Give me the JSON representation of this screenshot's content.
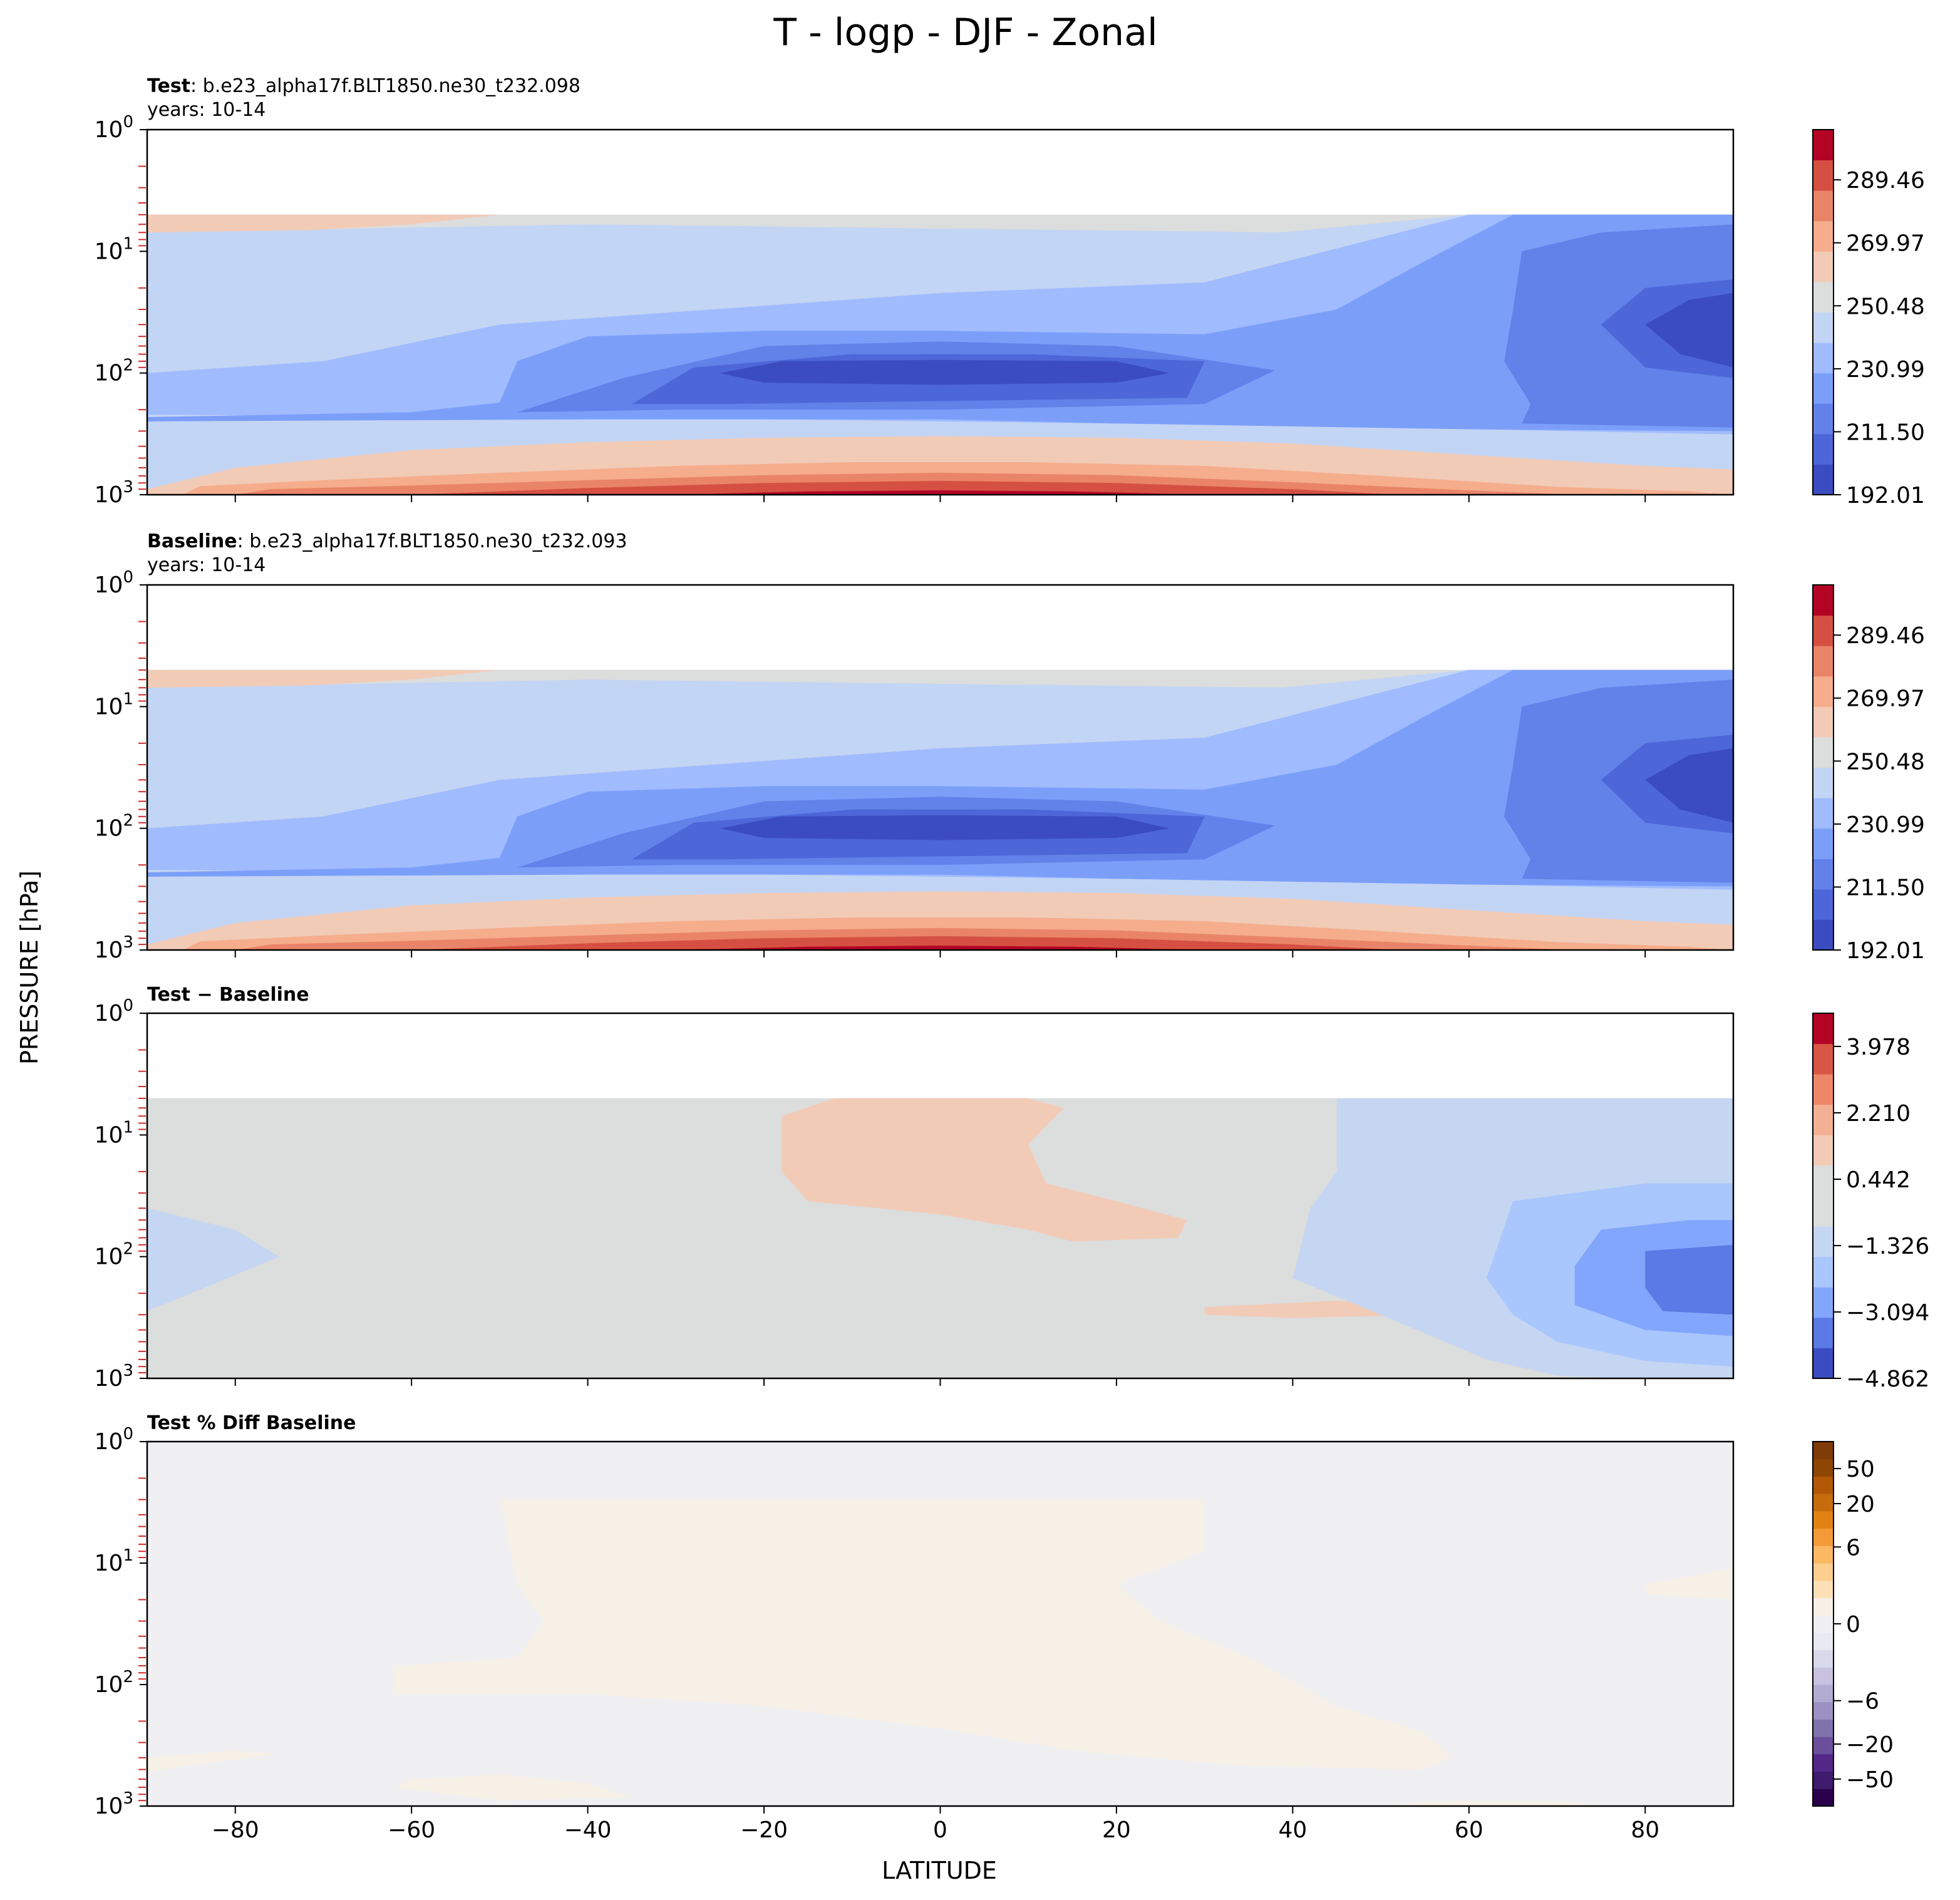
{
  "figure": {
    "title": "T - logp - DJF - Zonal",
    "ylabel": "PRESSURE [hPa]",
    "xlabel": "LATITUDE"
  },
  "chart_data": [
    {
      "type": "contour",
      "panel": "test",
      "title_bold": "Test",
      "title_rest": ": b.e23_alpha17f.BLT1850.ne30_t232.098",
      "subtitle": "years: 10-14",
      "xlim": [
        -90,
        90
      ],
      "ylim": [
        1000,
        1
      ],
      "yscale": "log",
      "x_ticks": [
        -80,
        -60,
        -40,
        -20,
        0,
        20,
        40,
        60,
        80
      ],
      "y_ticks": [
        {
          "base": "10",
          "exp": "0",
          "value": 1
        },
        {
          "base": "10",
          "exp": "1",
          "value": 10
        },
        {
          "base": "10",
          "exp": "2",
          "value": 100
        },
        {
          "base": "10",
          "exp": "3",
          "value": 1000
        }
      ],
      "colormap": "coolwarm",
      "colorbar_min": 192.01,
      "colorbar_max": 305.0,
      "colorbar_ticks": [
        "192.01",
        "211.50",
        "230.99",
        "250.48",
        "269.97",
        "289.46"
      ],
      "colorbar_tick_values": [
        192.01,
        211.5,
        230.99,
        250.48,
        269.97,
        289.46
      ],
      "colorbar_colors": [
        "#3b4cc0",
        "#4d66d8",
        "#6282ea",
        "#7b9ff9",
        "#a0bbfe",
        "#c3d5f4",
        "#dcdddd",
        "#f2cbb7",
        "#f5ad8c",
        "#ea8468",
        "#d55042",
        "#b40426"
      ],
      "background": "#ffffff"
    },
    {
      "type": "contour",
      "panel": "baseline",
      "title_bold": "Baseline",
      "title_rest": ": b.e23_alpha17f.BLT1850.ne30_t232.093",
      "subtitle": "years: 10-14",
      "xlim": [
        -90,
        90
      ],
      "ylim": [
        1000,
        1
      ],
      "yscale": "log",
      "x_ticks": [
        -80,
        -60,
        -40,
        -20,
        0,
        20,
        40,
        60,
        80
      ],
      "y_ticks": [
        {
          "base": "10",
          "exp": "0",
          "value": 1
        },
        {
          "base": "10",
          "exp": "1",
          "value": 10
        },
        {
          "base": "10",
          "exp": "2",
          "value": 100
        },
        {
          "base": "10",
          "exp": "3",
          "value": 1000
        }
      ],
      "colormap": "coolwarm",
      "colorbar_min": 192.01,
      "colorbar_max": 305.0,
      "colorbar_ticks": [
        "192.01",
        "211.50",
        "230.99",
        "250.48",
        "269.97",
        "289.46"
      ],
      "colorbar_tick_values": [
        192.01,
        211.5,
        230.99,
        250.48,
        269.97,
        289.46
      ],
      "colorbar_colors": [
        "#3b4cc0",
        "#4d66d8",
        "#6282ea",
        "#7b9ff9",
        "#a0bbfe",
        "#c3d5f4",
        "#dcdddd",
        "#f2cbb7",
        "#f5ad8c",
        "#ea8468",
        "#d55042",
        "#b40426"
      ],
      "background": "#ffffff"
    },
    {
      "type": "contour",
      "panel": "diff",
      "title_bold": "Test − Baseline",
      "title_rest": "",
      "subtitle": "",
      "xlim": [
        -90,
        90
      ],
      "ylim": [
        1000,
        1
      ],
      "yscale": "log",
      "x_ticks": [
        -80,
        -60,
        -40,
        -20,
        0,
        20,
        40,
        60,
        80
      ],
      "y_ticks": [
        {
          "base": "10",
          "exp": "0",
          "value": 1
        },
        {
          "base": "10",
          "exp": "1",
          "value": 10
        },
        {
          "base": "10",
          "exp": "2",
          "value": 100
        },
        {
          "base": "10",
          "exp": "3",
          "value": 1000
        }
      ],
      "colormap": "coolwarm",
      "colorbar_min": -4.862,
      "colorbar_max": 4.862,
      "colorbar_ticks": [
        "−4.862",
        "−3.094",
        "−1.326",
        "0.442",
        "2.210",
        "3.978"
      ],
      "colorbar_tick_values": [
        -4.862,
        -3.094,
        -1.326,
        0.442,
        2.21,
        3.978
      ],
      "colorbar_colors": [
        "#3b4cc0",
        "#5b7ae5",
        "#82a6fb",
        "#a9c6fd",
        "#c5d6f2",
        "#dcdddd",
        "#dcdddd",
        "#f2cbb7",
        "#f4b093",
        "#ee8669",
        "#d85646",
        "#b40426"
      ],
      "background": "#dcdddd"
    },
    {
      "type": "contour",
      "panel": "pctdiff",
      "title_bold": "Test % Diff Baseline",
      "title_rest": "",
      "subtitle": "",
      "xlim": [
        -90,
        90
      ],
      "ylim": [
        1000,
        1
      ],
      "yscale": "log",
      "x_ticks": [
        -80,
        -60,
        -40,
        -20,
        0,
        20,
        40,
        60,
        80
      ],
      "y_ticks": [
        {
          "base": "10",
          "exp": "0",
          "value": 1
        },
        {
          "base": "10",
          "exp": "1",
          "value": 10
        },
        {
          "base": "10",
          "exp": "2",
          "value": 100
        },
        {
          "base": "10",
          "exp": "3",
          "value": 1000
        }
      ],
      "colormap": "PuOr_r",
      "colorbar_min": -100,
      "colorbar_max": 100,
      "colorbar_ticks": [
        "−50",
        "−20",
        "−6",
        "0",
        "6",
        "20",
        "50"
      ],
      "colorbar_tick_values": [
        -50,
        -20,
        -6,
        0,
        6,
        20,
        50
      ],
      "colorbar_colors": [
        "#2d004b",
        "#3f1b6e",
        "#542788",
        "#6b4e9c",
        "#8073ac",
        "#9b91c2",
        "#b2abd2",
        "#c8c2e0",
        "#d8daeb",
        "#e9e9f1",
        "#f0f0f3",
        "#f7f0e6",
        "#fee0b6",
        "#fdce8e",
        "#fdb863",
        "#f59a38",
        "#e08214",
        "#c66c0d",
        "#b35806",
        "#8e4604",
        "#7f3b08"
      ],
      "background": "#f0f0f3"
    }
  ]
}
